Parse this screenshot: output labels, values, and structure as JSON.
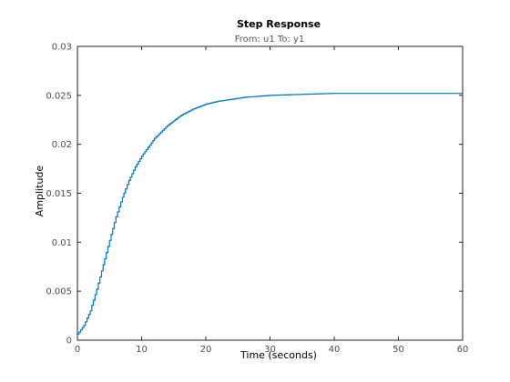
{
  "chart_data": {
    "type": "line",
    "title": "Step Response",
    "subtitle": "From: u1  To: y1",
    "xlabel": "Time (seconds)",
    "ylabel": "Amplitude",
    "xlim": [
      0,
      60
    ],
    "ylim": [
      0,
      0.03
    ],
    "x_ticks": [
      0,
      10,
      20,
      30,
      40,
      50,
      60
    ],
    "x_tick_labels": [
      "0",
      "10",
      "20",
      "30",
      "40",
      "50",
      "60"
    ],
    "y_ticks": [
      0,
      0.005,
      0.01,
      0.015,
      0.02,
      0.025,
      0.03
    ],
    "y_tick_labels": [
      "0",
      "0.005",
      "0.01",
      "0.015",
      "0.02",
      "0.025",
      "0.03"
    ],
    "grid": false,
    "line_color": "#0072bd",
    "step_style": "stairs",
    "series": [
      {
        "x": [
          0,
          1,
          2,
          3,
          4,
          5,
          6,
          7,
          8,
          9,
          10,
          12,
          14,
          16,
          18,
          20,
          22,
          24,
          26,
          28,
          30,
          35,
          40,
          45,
          50,
          55,
          60
        ],
        "values": [
          0.0006,
          0.0015,
          0.003,
          0.0052,
          0.0077,
          0.0102,
          0.0126,
          0.0146,
          0.0163,
          0.0177,
          0.0188,
          0.0206,
          0.0219,
          0.0229,
          0.0236,
          0.0241,
          0.0244,
          0.0246,
          0.0248,
          0.0249,
          0.025,
          0.0251,
          0.0252,
          0.0252,
          0.0252,
          0.0252,
          0.0252
        ]
      }
    ]
  }
}
